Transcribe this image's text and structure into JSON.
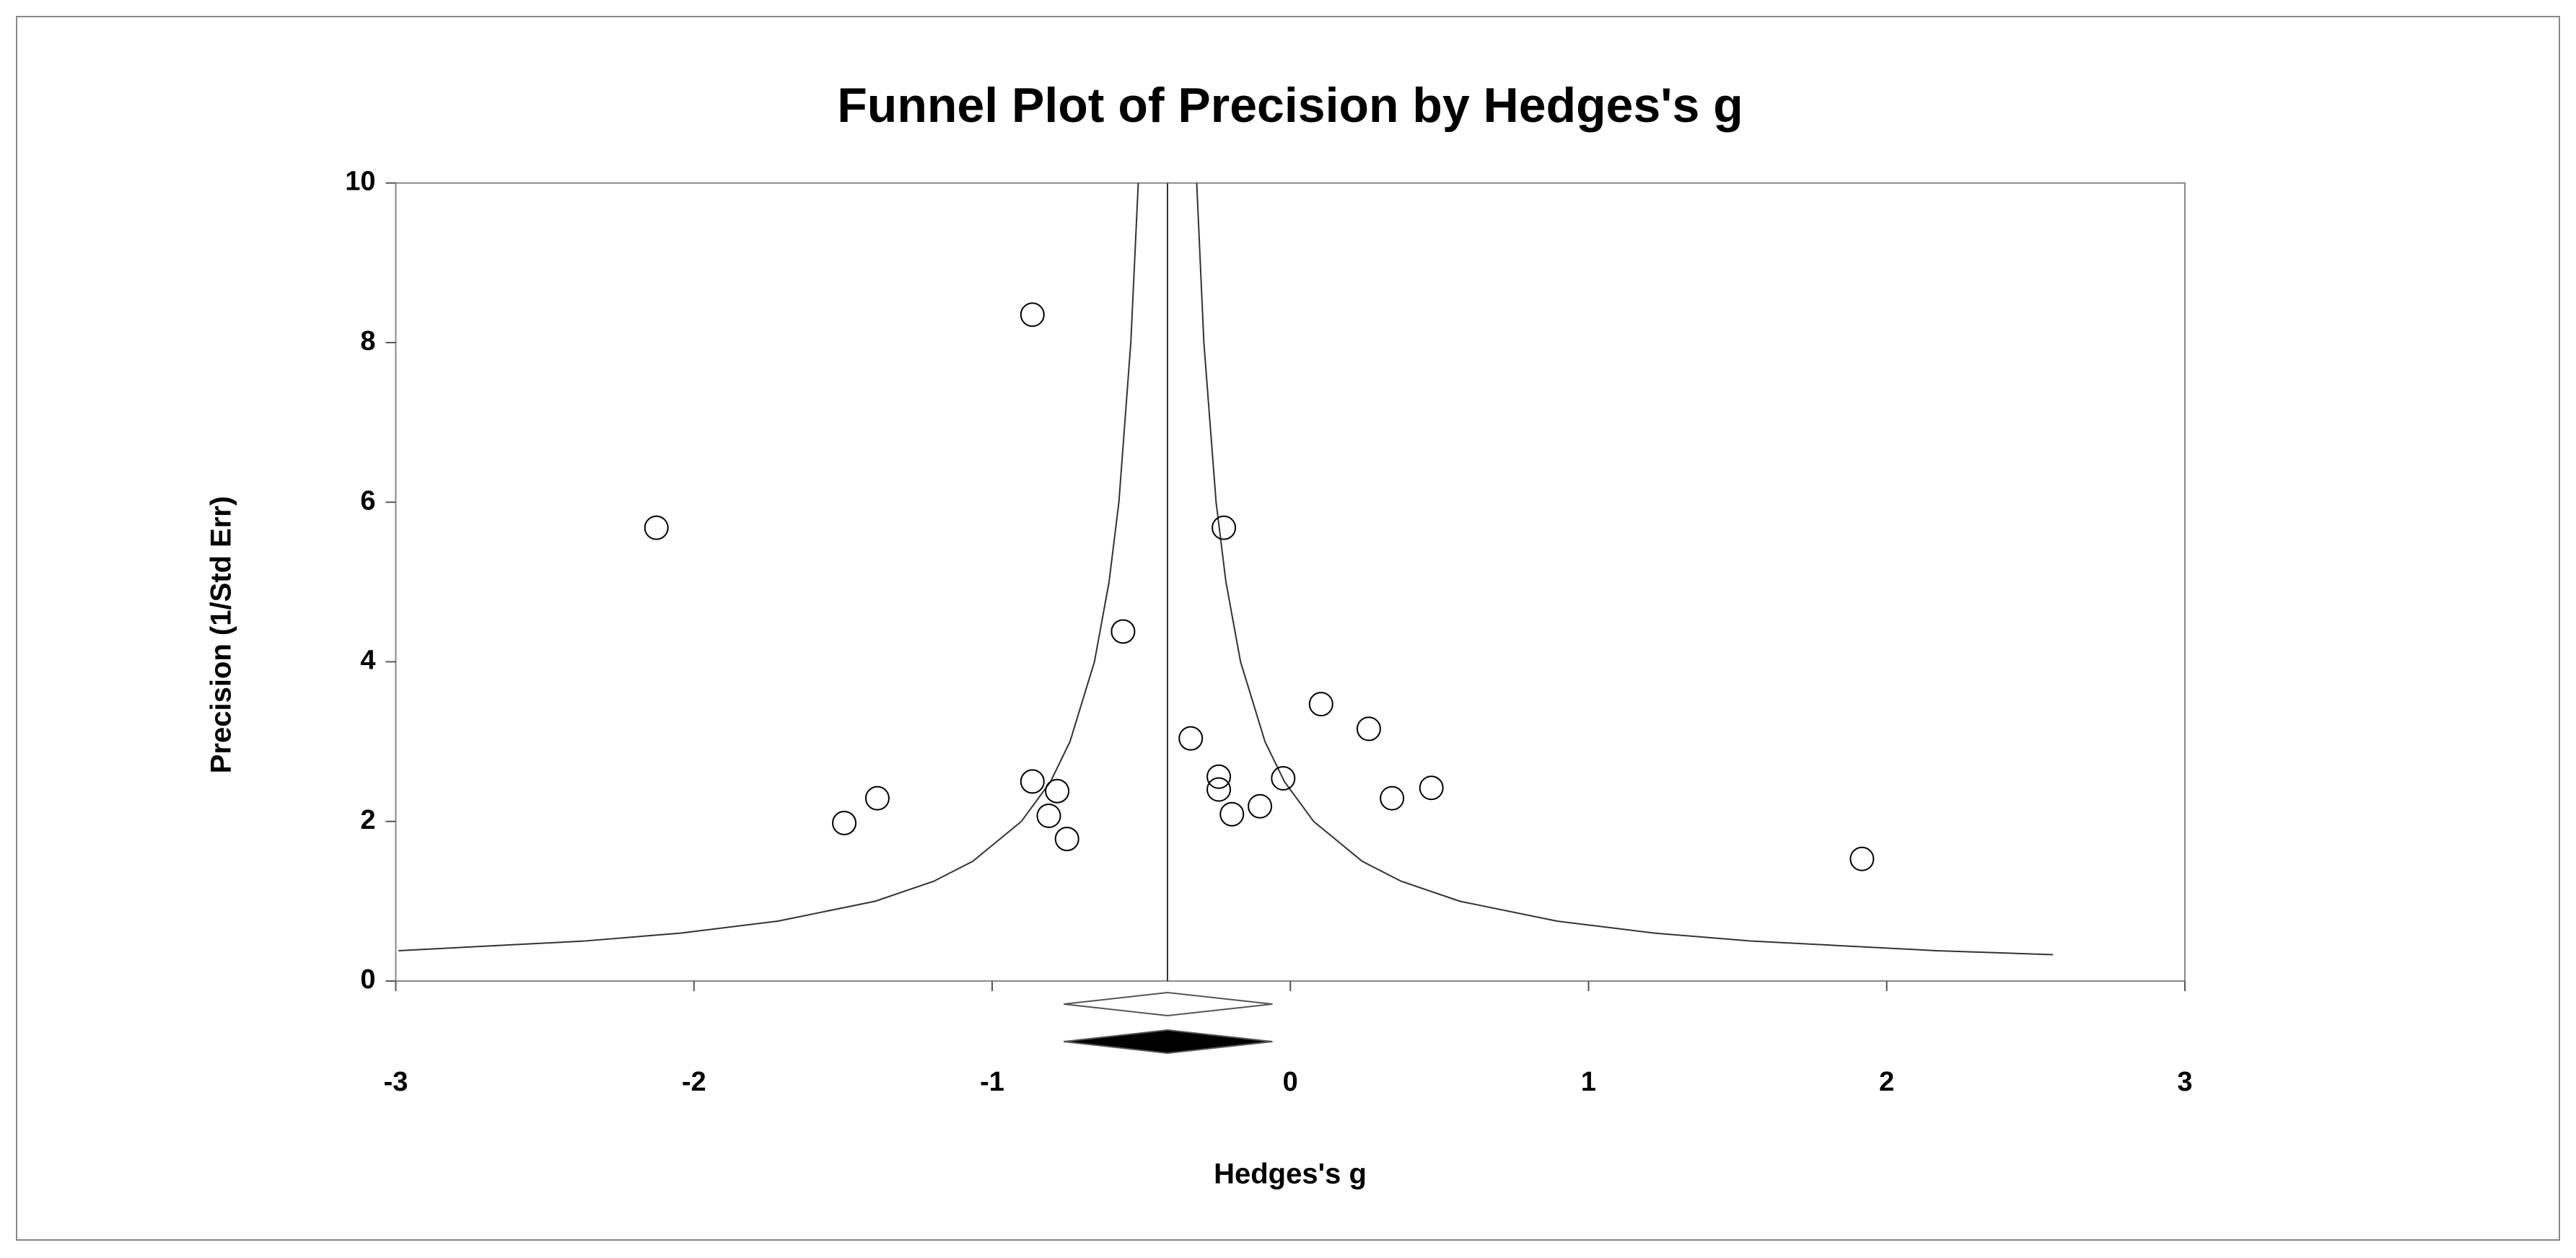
{
  "chart_data": {
    "type": "scatter",
    "title": "Funnel Plot of Precision by Hedges's g",
    "x_label": "Hedges's g",
    "y_label": "Precision (1/Std Err)",
    "xlim": [
      -3,
      3
    ],
    "xticks": [
      -3,
      -2,
      -1,
      0,
      1,
      2,
      3
    ],
    "ylim": [
      0,
      10
    ],
    "yticks": [
      0,
      2,
      4,
      6,
      8,
      10
    ],
    "color": "#000000",
    "x": [
      -2.126,
      -0.865,
      -1.496,
      -1.385,
      -0.865,
      -0.782,
      -0.81,
      -0.749,
      -0.561,
      -0.223,
      -0.334,
      -0.24,
      -0.24,
      -0.196,
      -0.102,
      -0.024,
      0.103,
      0.263,
      0.341,
      0.473,
      1.917
    ],
    "values": [
      5.68,
      8.35,
      1.98,
      2.29,
      2.5,
      2.38,
      2.07,
      1.78,
      4.38,
      5.68,
      3.04,
      2.56,
      2.4,
      2.09,
      2.19,
      2.54,
      3.47,
      3.16,
      2.29,
      2.42,
      1.53
    ],
    "center_line": -0.412,
    "funnel_lines": [
      {
        "x": [
          -2.991,
          -2.372,
          -2.045,
          -1.719,
          -1.392,
          -1.196,
          -1.065,
          -0.902,
          -0.804,
          -0.739,
          -0.657,
          -0.608,
          -0.575,
          -0.535,
          -0.51
        ],
        "y": [
          0.38,
          0.5,
          0.6,
          0.75,
          1,
          1.25,
          1.5,
          2,
          2.5,
          3,
          4,
          5,
          6,
          8,
          10
        ]
      },
      {
        "x": [
          2.558,
          2.167,
          1.548,
          1.221,
          0.895,
          0.568,
          0.372,
          0.241,
          0.078,
          -0.02,
          -0.085,
          -0.167,
          -0.216,
          -0.249,
          -0.29,
          -0.314
        ],
        "y": [
          0.33,
          0.38,
          0.5,
          0.6,
          0.75,
          1,
          1.25,
          1.5,
          2,
          2.5,
          3,
          4,
          5,
          6,
          8,
          10
        ]
      }
    ],
    "diamonds": [
      {
        "lower": -0.76,
        "center": -0.412,
        "upper": -0.06,
        "color": "#ffffff"
      },
      {
        "lower": -0.76,
        "center": -0.412,
        "upper": -0.06,
        "color": "#000000"
      }
    ]
  }
}
